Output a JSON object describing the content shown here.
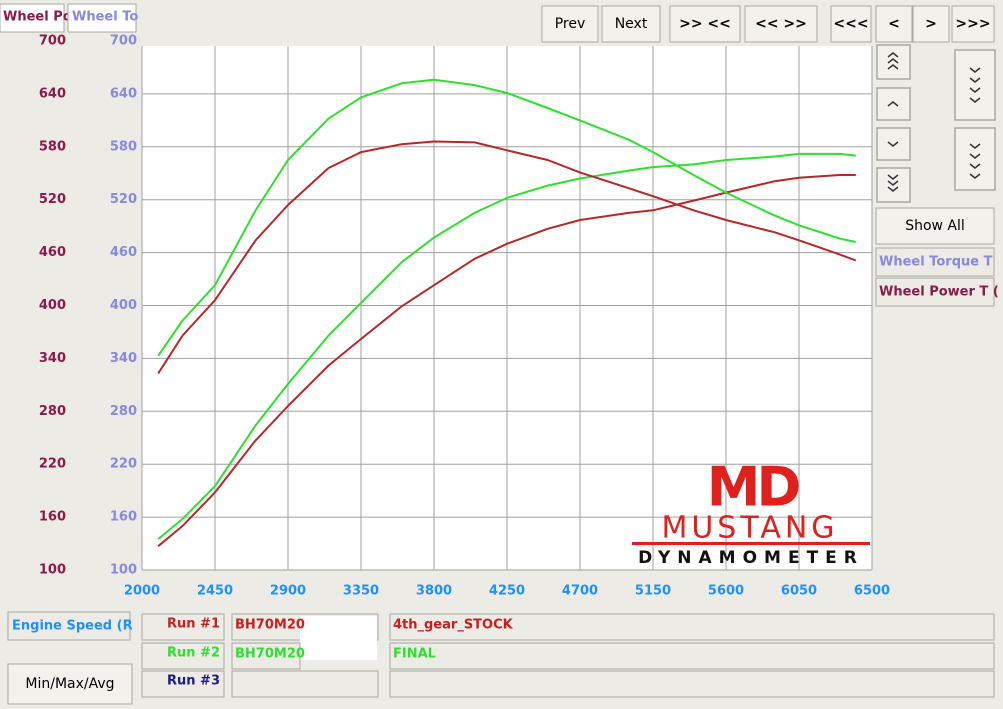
{
  "chart_data": {
    "type": "line",
    "x": [
      2100,
      2250,
      2450,
      2700,
      2900,
      3150,
      3350,
      3600,
      3800,
      4050,
      4250,
      4500,
      4700,
      5000,
      5150,
      5400,
      5600,
      5900,
      6050,
      6300,
      6400
    ],
    "series": [
      {
        "color": "#b5272a",
        "axis": "y",
        "values": [
          127,
          150,
          188,
          247,
          286,
          332,
          362,
          399,
          423,
          453,
          470,
          487,
          497,
          505,
          508,
          519,
          528,
          541,
          545,
          548,
          548
        ]
      },
      {
        "color": "#2ee02e",
        "axis": "y",
        "values": [
          135,
          158,
          195,
          264,
          311,
          366,
          403,
          449,
          477,
          505,
          522,
          536,
          544,
          553,
          557,
          560,
          565,
          569,
          572,
          572,
          570
        ]
      },
      {
        "color": "#b5272a",
        "axis": "y2",
        "values": [
          323,
          366,
          406,
          474,
          514,
          556,
          574,
          583,
          586,
          585,
          576,
          565,
          551,
          533,
          524,
          508,
          497,
          483,
          474,
          458,
          451
        ]
      },
      {
        "color": "#2ee02e",
        "axis": "y2",
        "values": [
          343,
          383,
          423,
          508,
          565,
          612,
          636,
          652,
          656,
          650,
          641,
          624,
          610,
          588,
          574,
          548,
          528,
          502,
          491,
          476,
          472
        ]
      }
    ],
    "xlim": [
      2000,
      6500
    ],
    "xticks": [
      2000,
      2450,
      2900,
      3350,
      3800,
      4250,
      4700,
      5150,
      5600,
      6050,
      6500
    ],
    "ylim": [
      100,
      700
    ],
    "yticks": [
      100,
      160,
      220,
      280,
      340,
      400,
      460,
      520,
      580,
      640,
      700
    ],
    "y2lim": [
      100,
      700
    ],
    "y2ticks": [
      100,
      160,
      220,
      280,
      340,
      400,
      460,
      520,
      580,
      640,
      700
    ],
    "grid": true
  },
  "tabs": [
    "Wheel Po",
    "Wheel To"
  ],
  "buttons": [
    "Prev",
    "Next",
    ">> <<",
    "<< >>",
    "<<<",
    "<",
    ">",
    ">>>",
    "Show All",
    "Min/Max/Avg"
  ],
  "axis_names": {
    "torque": "Wheel Torque T",
    "power": "Wheel Power T (",
    "x": "Engine Speed (R"
  },
  "runs": [
    {
      "label": "Run #1",
      "file": "BH70M20",
      "note": "4th_gear_STOCK"
    },
    {
      "label": "Run #2",
      "file": "BH70M20",
      "note": "FINAL"
    },
    {
      "label": "Run #3"
    }
  ],
  "logo": {
    "mark": "MD",
    "name": "MUSTANG",
    "sub": "DYNAMOMETER"
  }
}
